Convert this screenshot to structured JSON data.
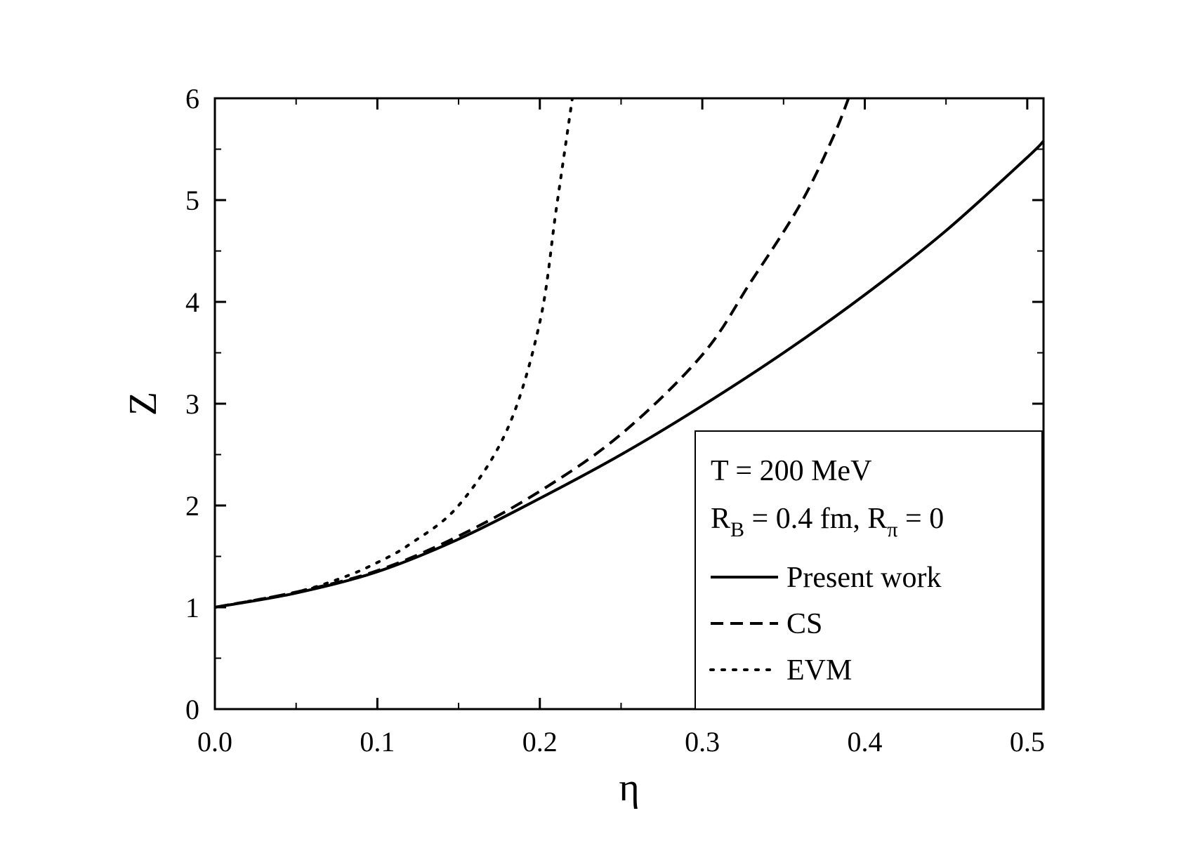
{
  "chart_data": {
    "type": "line",
    "xlabel": "η",
    "ylabel": "Z",
    "xlim": [
      0.0,
      0.51
    ],
    "ylim": [
      0,
      6
    ],
    "x_ticks": [
      0.0,
      0.1,
      0.2,
      0.3,
      0.4,
      0.5
    ],
    "x_tick_labels": [
      "0.0",
      "0.1",
      "0.2",
      "0.3",
      "0.4",
      "0.5"
    ],
    "y_ticks": [
      0,
      1,
      2,
      3,
      4,
      5,
      6
    ],
    "y_tick_labels": [
      "0",
      "1",
      "2",
      "3",
      "4",
      "5",
      "6"
    ],
    "grid": false,
    "legend_position": "bottom-right",
    "legend_text": {
      "line1": "T = 200 MeV",
      "line2_a": "R",
      "line2_a_sub": "B",
      "line2_b": " = 0.4 fm, R",
      "line2_b_sub": "π",
      "line2_c": " = 0"
    },
    "series": [
      {
        "name": "Present work",
        "style": "solid",
        "x": [
          0.0,
          0.05,
          0.1,
          0.15,
          0.2,
          0.25,
          0.3,
          0.35,
          0.4,
          0.45,
          0.5,
          0.51
        ],
        "y": [
          1.0,
          1.14,
          1.35,
          1.67,
          2.07,
          2.5,
          2.98,
          3.5,
          4.07,
          4.7,
          5.42,
          5.58
        ]
      },
      {
        "name": "CS",
        "style": "dashed",
        "x": [
          0.0,
          0.05,
          0.1,
          0.15,
          0.2,
          0.25,
          0.3,
          0.33,
          0.36,
          0.38,
          0.39
        ],
        "y": [
          1.0,
          1.15,
          1.36,
          1.7,
          2.14,
          2.7,
          3.48,
          4.2,
          4.95,
          5.6,
          6.0
        ]
      },
      {
        "name": "EVM",
        "style": "dotted",
        "x": [
          0.0,
          0.05,
          0.08,
          0.1,
          0.12,
          0.15,
          0.18,
          0.2,
          0.21,
          0.22
        ],
        "y": [
          1.0,
          1.15,
          1.3,
          1.44,
          1.62,
          2.0,
          2.75,
          3.8,
          4.9,
          6.0
        ]
      }
    ]
  }
}
